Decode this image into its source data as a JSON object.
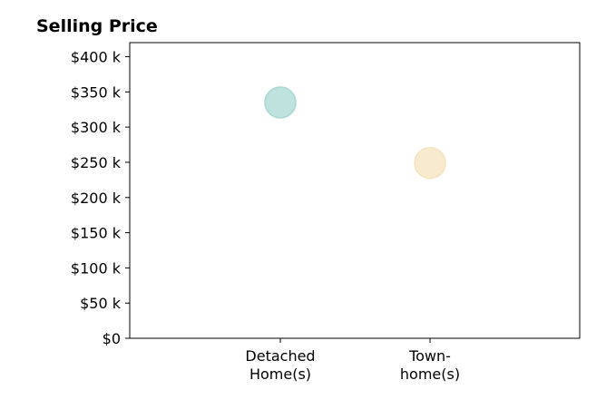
{
  "chart_data": {
    "type": "scatter",
    "title": "Selling Price",
    "categories": [
      [
        "Detached",
        "Home(s)"
      ],
      [
        "Town-",
        "home(s)"
      ]
    ],
    "values": [
      335000,
      249000
    ],
    "point_colors": [
      "#a8d8d2",
      "#f5e3bd"
    ],
    "ylim": [
      0,
      420000
    ],
    "yticks": [
      0,
      50000,
      100000,
      150000,
      200000,
      250000,
      300000,
      350000,
      400000
    ],
    "ytick_labels": [
      "$0",
      "$50 k",
      "$100 k",
      "$150 k",
      "$200 k",
      "$250 k",
      "$300 k",
      "$350 k",
      "$400 k"
    ],
    "grid": false,
    "legend": "none"
  }
}
